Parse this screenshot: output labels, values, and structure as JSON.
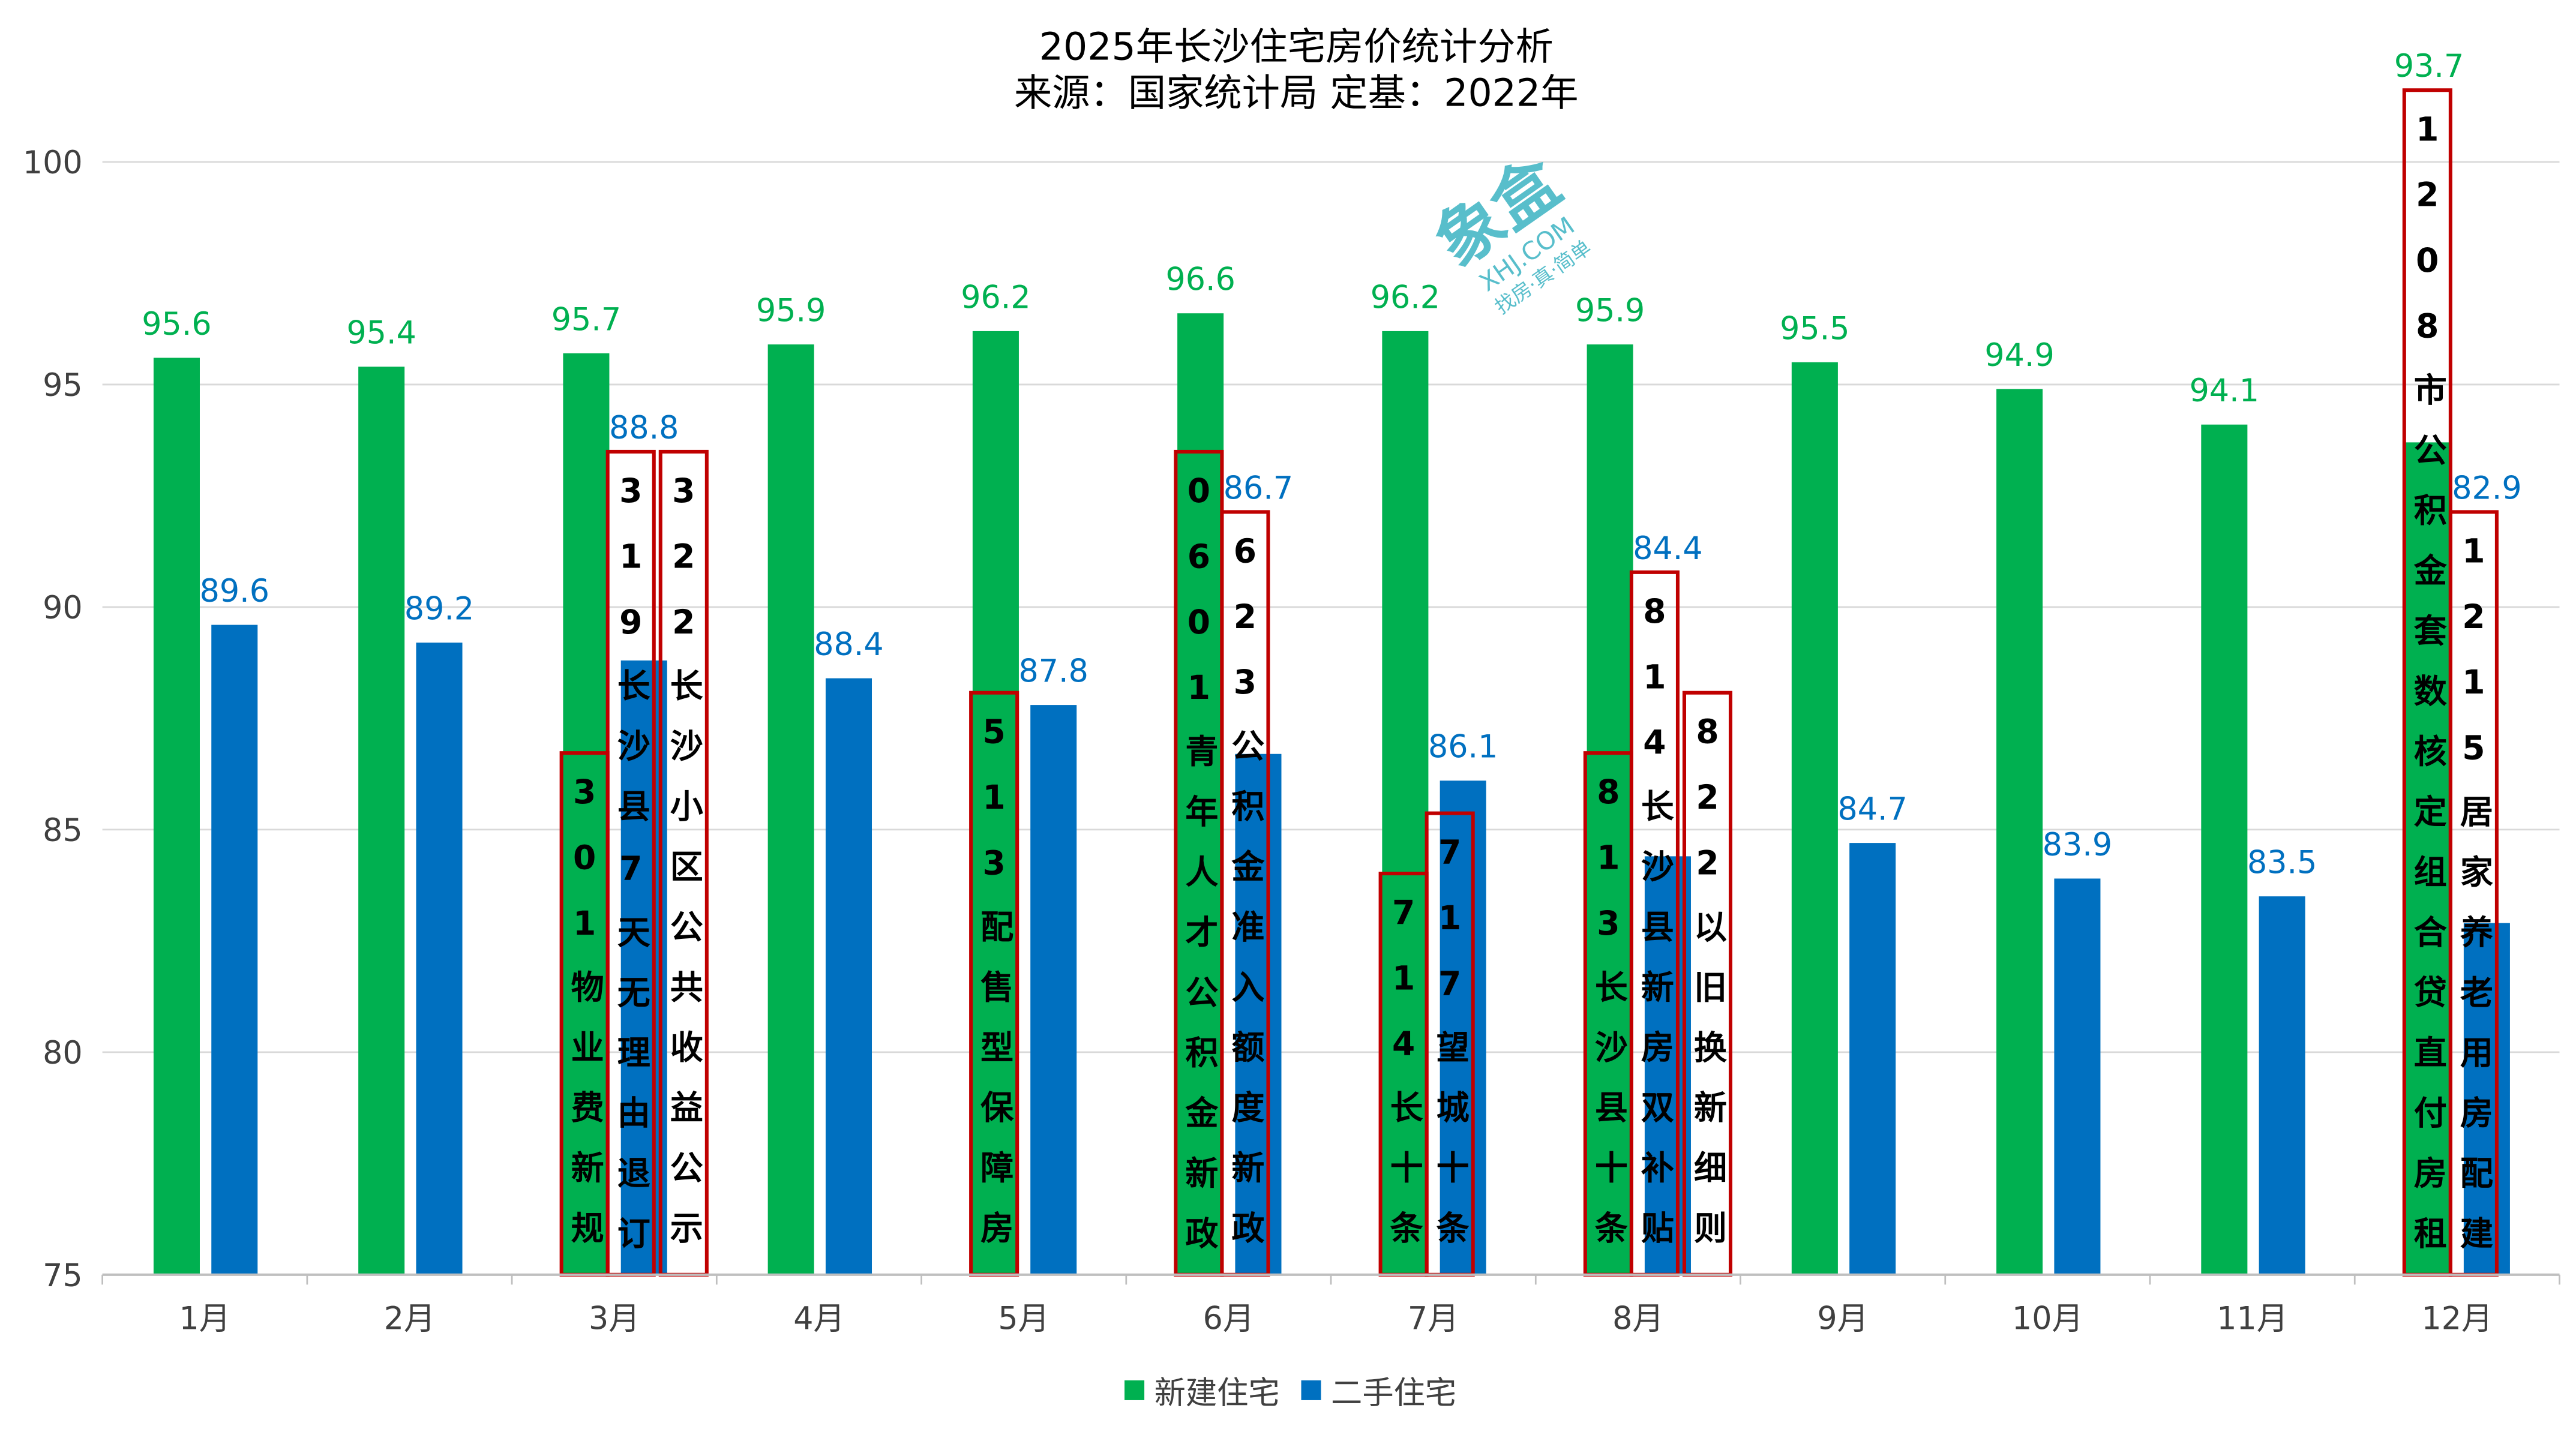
{
  "chart_data": {
    "type": "bar",
    "title": "2025年长沙住宅房价统计分析",
    "subtitle": "来源：国家统计局 定基：2022年",
    "categories": [
      "1月",
      "2月",
      "3月",
      "4月",
      "5月",
      "6月",
      "7月",
      "8月",
      "9月",
      "10月",
      "11月",
      "12月"
    ],
    "series": [
      {
        "name": "新建住宅",
        "color": "#00B050",
        "values": [
          95.6,
          95.4,
          95.7,
          95.9,
          96.2,
          96.6,
          96.2,
          95.9,
          95.5,
          94.9,
          94.1,
          93.7
        ]
      },
      {
        "name": "二手住宅",
        "color": "#0070C0",
        "values": [
          89.6,
          89.2,
          88.8,
          88.4,
          87.8,
          86.7,
          86.1,
          84.4,
          84.7,
          83.9,
          83.5,
          82.9
        ]
      }
    ],
    "ylim": [
      75,
      100
    ],
    "yticks": [
      75,
      80,
      85,
      90,
      95,
      100
    ],
    "grid": true,
    "legend": "bottom",
    "annotation_color": "#C00000",
    "annotations": [
      {
        "category": "3月",
        "slot": "green",
        "text": "301物业费新规"
      },
      {
        "category": "3月",
        "slot": "blue",
        "text": "319长沙县7天无理由退订"
      },
      {
        "category": "3月",
        "slot": "right",
        "text": "322长沙小区公共收益公示"
      },
      {
        "category": "5月",
        "slot": "green",
        "text": "513配售型保障房"
      },
      {
        "category": "6月",
        "slot": "green",
        "text": "0601青年人才公积金新政"
      },
      {
        "category": "6月",
        "slot": "blue",
        "text": "623公积金准入额度新政"
      },
      {
        "category": "7月",
        "slot": "green",
        "text": "714长十条"
      },
      {
        "category": "7月",
        "slot": "blue",
        "text": "717望城十条"
      },
      {
        "category": "8月",
        "slot": "green",
        "text": "813长沙县十条"
      },
      {
        "category": "8月",
        "slot": "blue",
        "text": "814长沙县新房双补贴"
      },
      {
        "category": "8月",
        "slot": "right",
        "text": "822以旧换新细则"
      },
      {
        "category": "12月",
        "slot": "green",
        "text": "1208市公积金套数核定组合贷直付房租"
      },
      {
        "category": "12月",
        "slot": "blue",
        "text": "1215居家养老用房配建"
      }
    ]
  },
  "watermark": {
    "logo": "象盒",
    "domain": "XHJ.COM",
    "slogan": "找房·真·简单",
    "color": "#3BB3C3"
  }
}
